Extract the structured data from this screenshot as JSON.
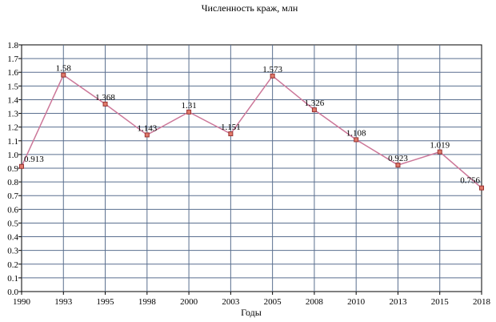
{
  "chart_data": {
    "type": "line",
    "title": "Численность краж, млн",
    "xlabel": "Годы",
    "ylabel": "",
    "ylim": [
      0,
      1.8
    ],
    "yticks": [
      "0.0",
      "0.1",
      "0.2",
      "0.3",
      "0.4",
      "0.5",
      "0.6",
      "0.7",
      "0.8",
      "0.9",
      "1.0",
      "1.1",
      "1.2",
      "1.3",
      "1.4",
      "1.5",
      "1.6",
      "1.7",
      "1.8"
    ],
    "categories": [
      "1990",
      "1993",
      "1995",
      "1998",
      "2000",
      "2003",
      "2005",
      "2008",
      "2010",
      "2013",
      "2015",
      "2018"
    ],
    "series": [
      {
        "values": [
          0.913,
          1.58,
          1.368,
          1.143,
          1.31,
          1.151,
          1.573,
          1.326,
          1.108,
          0.923,
          1.019,
          0.756
        ],
        "labels": [
          "0.913",
          "1.58",
          "1.368",
          "1.143",
          "1.31",
          "1.151",
          "1.573",
          "1.326",
          "1.108",
          "0.923",
          "1.019",
          "0.756"
        ],
        "line_color": "#cc7799",
        "marker_color": "#e07a6a",
        "marker_stroke": "#993333"
      }
    ],
    "grid": true,
    "grid_color": "#5a6f8f",
    "legend": "none"
  }
}
